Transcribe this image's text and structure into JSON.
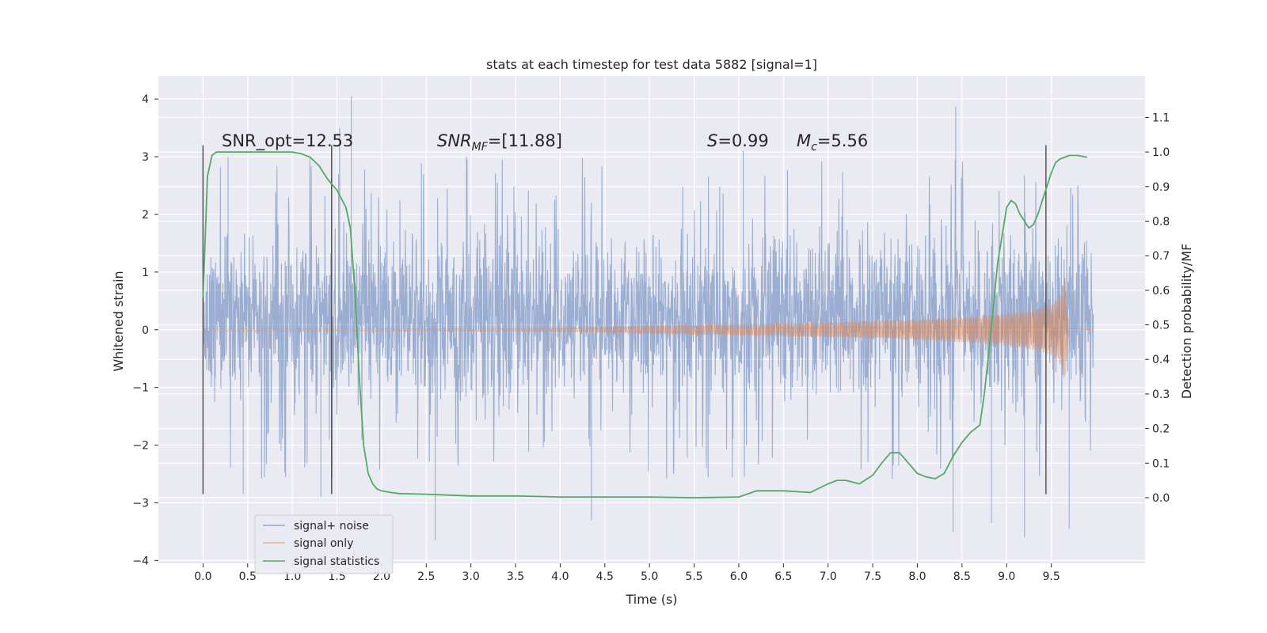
{
  "chart_data": {
    "type": "line",
    "title": "stats at each timestep for test data 5882 [signal=1]",
    "xlabel": "Time (s)",
    "ylabel": "Whitened strain",
    "y2label": "Detection probability/MF",
    "xlim": [
      -0.5,
      10.55
    ],
    "ylim": [
      -4.05,
      4.4
    ],
    "y2lim": [
      -0.19,
      1.22
    ],
    "x_ticks": [
      "0.0",
      "0.5",
      "1.0",
      "1.5",
      "2.0",
      "2.5",
      "3.0",
      "3.5",
      "4.0",
      "4.5",
      "5.0",
      "5.5",
      "6.0",
      "6.5",
      "7.0",
      "7.5",
      "8.0",
      "8.5",
      "9.0",
      "9.5"
    ],
    "y_ticks": [
      "4",
      "3",
      "2",
      "1",
      "0",
      "−1",
      "−2",
      "−3",
      "−4"
    ],
    "y2_ticks": [
      "1.1",
      "1.0",
      "0.9",
      "0.8",
      "0.7",
      "0.6",
      "0.5",
      "0.4",
      "0.3",
      "0.2",
      "0.1",
      "0.0"
    ],
    "grid": true,
    "legend_position": "lower-left",
    "annotations": {
      "snr_opt": "SNR_opt=12.53",
      "snr_mf_main": "SNR",
      "snr_mf_sub": "MF",
      "snr_mf_value": "=[11.88]",
      "s_main": "S",
      "s_value": "=0.99",
      "mc_main": "M",
      "mc_sub": "c",
      "mc_value": "=5.56"
    },
    "vertical_markers": [
      {
        "x": 0.0,
        "ymin": -2.85,
        "ymax": 3.2
      },
      {
        "x": 1.44,
        "ymin": -2.85,
        "ymax": 3.2
      },
      {
        "x": 9.44,
        "ymin": -2.85,
        "ymax": 3.2
      }
    ],
    "series": [
      {
        "name": "signal+ noise",
        "color": "#4c72b0",
        "envelope_center": 0.2,
        "envelope_halfwidth": 1.2,
        "x_range": [
          0.0,
          9.97
        ],
        "peaks": [
          {
            "x": 1.53,
            "y": 3.5
          },
          {
            "x": 1.66,
            "y": 4.05
          },
          {
            "x": 8.43,
            "y": 3.87
          },
          {
            "x": 6.05,
            "y": 3.1
          },
          {
            "x": 2.95,
            "y": 3.0
          },
          {
            "x": 0.28,
            "y": 3.0
          },
          {
            "x": 0.45,
            "y": -2.85
          },
          {
            "x": 1.32,
            "y": -2.9
          },
          {
            "x": 2.6,
            "y": -3.65
          },
          {
            "x": 4.35,
            "y": -3.3
          },
          {
            "x": 8.83,
            "y": -3.35
          },
          {
            "x": 9.2,
            "y": -3.6
          },
          {
            "x": 9.7,
            "y": -3.45
          },
          {
            "x": 8.4,
            "y": -3.5
          }
        ]
      },
      {
        "name": "signal only",
        "color": "#dd8452",
        "x": [
          0.0,
          3.0,
          4.0,
          5.0,
          6.0,
          7.0,
          8.0,
          8.5,
          9.0,
          9.3,
          9.5,
          9.6,
          9.65,
          9.68,
          9.7
        ],
        "amplitude": [
          0.02,
          0.02,
          0.03,
          0.07,
          0.1,
          0.13,
          0.18,
          0.22,
          0.28,
          0.35,
          0.45,
          0.6,
          0.9,
          0.4,
          0.02
        ]
      },
      {
        "name": "signal statistics",
        "color": "#55a868",
        "axis": "right",
        "x": [
          0.0,
          0.05,
          0.1,
          0.15,
          0.2,
          0.3,
          0.5,
          0.8,
          1.0,
          1.1,
          1.2,
          1.3,
          1.4,
          1.5,
          1.6,
          1.65,
          1.7,
          1.75,
          1.8,
          1.85,
          1.9,
          1.95,
          2.0,
          2.1,
          2.2,
          2.5,
          3.0,
          3.5,
          4.0,
          4.5,
          5.0,
          5.5,
          6.0,
          6.2,
          6.5,
          6.8,
          7.0,
          7.1,
          7.2,
          7.35,
          7.5,
          7.6,
          7.7,
          7.8,
          7.9,
          8.0,
          8.1,
          8.2,
          8.3,
          8.4,
          8.5,
          8.6,
          8.7,
          8.75,
          8.8,
          8.85,
          8.9,
          8.95,
          9.0,
          9.05,
          9.1,
          9.15,
          9.2,
          9.25,
          9.3,
          9.35,
          9.4,
          9.45,
          9.5,
          9.55,
          9.6,
          9.7,
          9.8,
          9.9
        ],
        "y": [
          0.58,
          0.93,
          0.99,
          1.0,
          1.0,
          1.0,
          1.0,
          1.0,
          1.0,
          0.995,
          0.985,
          0.96,
          0.92,
          0.89,
          0.84,
          0.78,
          0.6,
          0.35,
          0.15,
          0.07,
          0.04,
          0.025,
          0.02,
          0.015,
          0.012,
          0.01,
          0.005,
          0.005,
          0.002,
          0.002,
          0.002,
          0.0,
          0.002,
          0.02,
          0.02,
          0.015,
          0.04,
          0.05,
          0.05,
          0.04,
          0.065,
          0.1,
          0.13,
          0.13,
          0.1,
          0.07,
          0.06,
          0.055,
          0.07,
          0.12,
          0.16,
          0.19,
          0.21,
          0.3,
          0.42,
          0.55,
          0.68,
          0.76,
          0.84,
          0.86,
          0.85,
          0.82,
          0.8,
          0.78,
          0.79,
          0.82,
          0.86,
          0.9,
          0.94,
          0.97,
          0.98,
          0.99,
          0.99,
          0.985
        ]
      }
    ]
  }
}
